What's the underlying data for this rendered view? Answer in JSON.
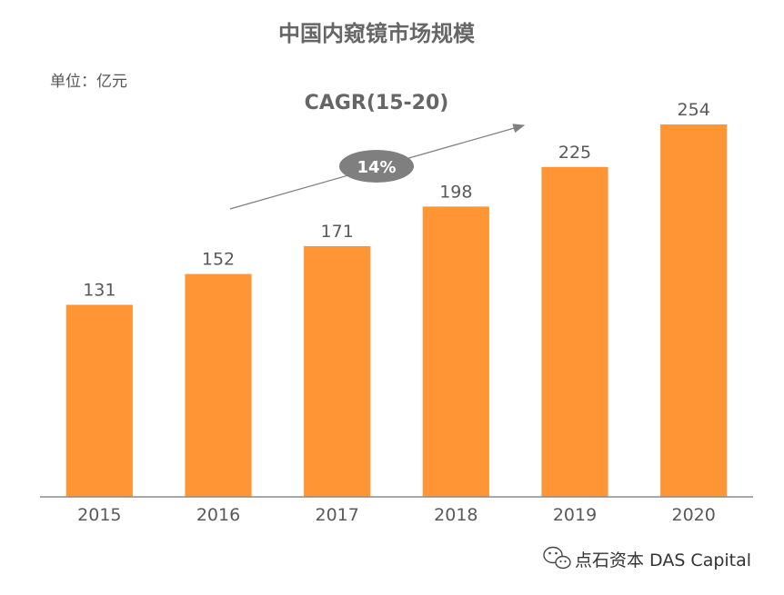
{
  "chart_data": {
    "type": "bar",
    "title": "中国内窥镜市场规模",
    "unit_label": "单位：亿元",
    "categories": [
      "2015",
      "2016",
      "2017",
      "2018",
      "2019",
      "2020"
    ],
    "values": [
      131,
      152,
      171,
      198,
      225,
      254
    ],
    "ylim": [
      0,
      280
    ],
    "grid": false,
    "bar_color": "#FF9535",
    "annotation": {
      "label": "CAGR(15-20)",
      "value": "14%"
    }
  },
  "watermark": {
    "text": "点石资本 DAS Capital",
    "icon": "wechat-icon"
  }
}
